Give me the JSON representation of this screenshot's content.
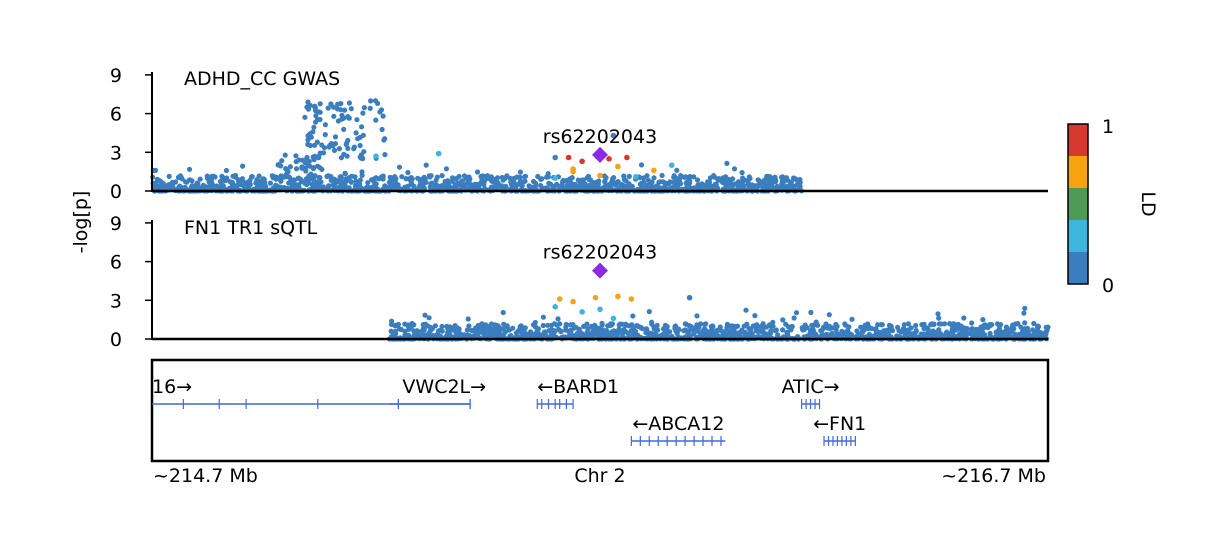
{
  "chart_data": [
    {
      "type": "scatter",
      "title": "ADHD_CC GWAS",
      "ylabel": "-log[p]",
      "ylim": [
        0,
        10
      ],
      "yticks": [
        0,
        3,
        6,
        9
      ],
      "xlim": [
        214.7,
        216.7
      ],
      "lead_snp": {
        "label": "rs62202043",
        "x": 215.7,
        "y": 2.8
      },
      "data_extent": [
        214.7,
        216.15
      ],
      "clusters": [
        {
          "xmin": 214.98,
          "xmax": 215.08,
          "ymin": 0.3,
          "ymax": 2.8,
          "n": 60
        },
        {
          "xmin": 215.04,
          "xmax": 215.22,
          "ymin": 2.5,
          "ymax": 7.0,
          "n": 95
        }
      ],
      "notable_points": [
        {
          "x": 215.2,
          "y": 2.7,
          "ld": 0.3
        },
        {
          "x": 215.34,
          "y": 2.9,
          "ld": 0.3
        },
        {
          "x": 215.63,
          "y": 2.6,
          "ld": 0.9
        },
        {
          "x": 215.66,
          "y": 2.3,
          "ld": 0.9
        },
        {
          "x": 215.72,
          "y": 2.5,
          "ld": 0.9
        },
        {
          "x": 215.76,
          "y": 2.6,
          "ld": 0.9
        },
        {
          "x": 215.64,
          "y": 1.7,
          "ld": 0.75
        },
        {
          "x": 215.74,
          "y": 1.9,
          "ld": 0.75
        },
        {
          "x": 215.82,
          "y": 1.6,
          "ld": 0.75
        },
        {
          "x": 215.64,
          "y": 1.5,
          "ld": 0.6
        },
        {
          "x": 215.7,
          "y": 1.2,
          "ld": 0.6
        },
        {
          "x": 215.6,
          "y": 1.0,
          "ld": 0.3
        },
        {
          "x": 215.78,
          "y": 1.1,
          "ld": 0.3
        },
        {
          "x": 215.86,
          "y": 2.0,
          "ld": 0.3
        },
        {
          "x": 215.73,
          "y": 4.3,
          "ld": 0.1
        },
        {
          "x": 215.6,
          "y": 2.6,
          "ld": 0.1
        }
      ]
    },
    {
      "type": "scatter",
      "title": "FN1 TR1 sQTL",
      "ylabel": "-log[p]",
      "ylim": [
        0,
        10
      ],
      "yticks": [
        0,
        3,
        6,
        9
      ],
      "xlim": [
        214.7,
        216.7
      ],
      "lead_snp": {
        "label": "rs62202043",
        "x": 215.7,
        "y": 5.3
      },
      "data_extent": [
        215.23,
        216.7
      ],
      "notable_points": [
        {
          "x": 215.61,
          "y": 3.1,
          "ld": 0.75
        },
        {
          "x": 215.69,
          "y": 3.2,
          "ld": 0.75
        },
        {
          "x": 215.74,
          "y": 3.3,
          "ld": 0.75
        },
        {
          "x": 215.77,
          "y": 3.1,
          "ld": 0.75
        },
        {
          "x": 215.64,
          "y": 2.9,
          "ld": 0.6
        },
        {
          "x": 215.66,
          "y": 2.1,
          "ld": 0.3
        },
        {
          "x": 215.7,
          "y": 2.3,
          "ld": 0.3
        },
        {
          "x": 215.6,
          "y": 2.5,
          "ld": 0.3
        },
        {
          "x": 215.73,
          "y": 1.6,
          "ld": 0.3
        },
        {
          "x": 215.9,
          "y": 3.2,
          "ld": 0.1
        }
      ]
    }
  ],
  "genes": [
    {
      "label": "16→",
      "start": 214.7,
      "end": 215.41,
      "row": 0,
      "label_align": "start",
      "exons": [
        214.77,
        214.85,
        214.91,
        215.07,
        215.25,
        215.41
      ]
    },
    {
      "label": "VWC2L→",
      "start": 215.23,
      "end": 215.41,
      "row": 0,
      "label_align": "end",
      "exons": [
        215.25,
        215.41
      ]
    },
    {
      "label": "←BARD1",
      "start": 215.56,
      "end": 215.64,
      "row": 0,
      "label_align": "start",
      "exons": [
        215.56,
        215.57,
        215.585,
        215.6,
        215.61,
        215.625,
        215.64
      ]
    },
    {
      "label": "ATIC→",
      "start": 216.15,
      "end": 216.19,
      "row": 0,
      "label_align": "middle",
      "exons": [
        216.15,
        216.16,
        216.17,
        216.18,
        216.19
      ]
    },
    {
      "label": "←ABCA12",
      "start": 215.77,
      "end": 215.98,
      "row": 1,
      "label_align": "middle",
      "exons": [
        215.77,
        215.79,
        215.81,
        215.83,
        215.85,
        215.87,
        215.89,
        215.91,
        215.93,
        215.95,
        215.97
      ]
    },
    {
      "label": "←FN1",
      "start": 216.2,
      "end": 216.27,
      "row": 1,
      "label_align": "middle",
      "exons": [
        216.2,
        216.21,
        216.22,
        216.23,
        216.24,
        216.25,
        216.26,
        216.27
      ]
    }
  ],
  "axis": {
    "left_label": "~214.7 Mb",
    "center_label": "Chr 2",
    "right_label": "~216.7 Mb"
  },
  "ld_legend": {
    "label": "LD",
    "min_label": "0",
    "max_label": "1",
    "bins": [
      "#3a7ebf",
      "#3db5dd",
      "#4f9a56",
      "#f5a30e",
      "#d5392e"
    ]
  },
  "colors": {
    "base_point": "#3a7ebf",
    "lead_snp": "#8a2be2",
    "gene": "#4169e1"
  }
}
